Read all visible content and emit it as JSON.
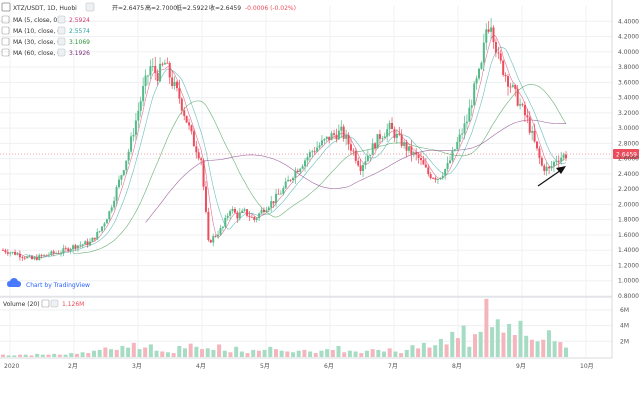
{
  "header": {
    "pair": "XTZ/USDT, 1D, Huobi",
    "open_label": "开=2.6475",
    "high_label": "高=2.7000",
    "low_label": "低=2.5922",
    "close_label": "收=2.6459",
    "change_label": "-0.0006 (-0.02%)"
  },
  "indicators": [
    {
      "label": "MA (5, close, 0)",
      "value": "2.5924",
      "color": "#d23a6e"
    },
    {
      "label": "MA (10, close, 0)",
      "value": "2.5574",
      "color": "#2aa39a"
    },
    {
      "label": "MA (30, close, 0)",
      "value": "3.1069",
      "color": "#2d8f3a"
    },
    {
      "label": "MA (60, close, 0)",
      "value": "3.1926",
      "color": "#7a2a7a"
    }
  ],
  "volume_panel": {
    "label": "Volume (20)",
    "value": "1.126M",
    "ticks": [
      "6M",
      "4M",
      "2M"
    ]
  },
  "watermark": "Chart by TradingView",
  "current_price_tag": "2.6459",
  "colors": {
    "up": "#53b987",
    "down": "#eb4d5c",
    "up_volume": "#a6dcc4",
    "down_volume": "#f5b5bd",
    "tag": "#eb4d5c"
  },
  "chart_data": {
    "type": "candlestick",
    "title": "XTZ/USDT, 1D, Huobi",
    "price_axis_ticks": [
      "4.4000",
      "4.2000",
      "4.0000",
      "3.8000",
      "3.6000",
      "3.4000",
      "3.2000",
      "3.0000",
      "2.8000",
      "2.6000",
      "2.4000",
      "2.2000",
      "2.0000",
      "1.8000",
      "1.6000",
      "1.4000",
      "1.2000",
      "1.0000",
      "0.8000"
    ],
    "x_axis_ticks": [
      "2020",
      "2月",
      "3月",
      "4月",
      "5月",
      "6月",
      "7月",
      "8月",
      "9月",
      "10月"
    ],
    "ylim": [
      0.8,
      4.6
    ],
    "volume_ylim": [
      0,
      7
    ],
    "current_price": 2.6459,
    "price_path": [
      [
        0,
        1.4
      ],
      [
        6,
        1.35
      ],
      [
        12,
        1.28
      ],
      [
        18,
        1.34
      ],
      [
        24,
        1.38
      ],
      [
        30,
        1.46
      ],
      [
        36,
        1.5
      ],
      [
        40,
        1.65
      ],
      [
        44,
        1.9
      ],
      [
        48,
        2.3
      ],
      [
        52,
        2.7
      ],
      [
        55,
        3.1
      ],
      [
        58,
        3.5
      ],
      [
        61,
        3.8
      ],
      [
        64,
        3.7
      ],
      [
        67,
        3.85
      ],
      [
        70,
        3.6
      ],
      [
        73,
        3.4
      ],
      [
        76,
        3.1
      ],
      [
        79,
        2.8
      ],
      [
        82,
        2.6
      ],
      [
        85,
        1.5
      ],
      [
        88,
        1.6
      ],
      [
        91,
        1.7
      ],
      [
        94,
        1.95
      ],
      [
        97,
        1.85
      ],
      [
        100,
        1.9
      ],
      [
        104,
        1.8
      ],
      [
        108,
        1.95
      ],
      [
        112,
        2.05
      ],
      [
        116,
        2.2
      ],
      [
        120,
        2.4
      ],
      [
        124,
        2.55
      ],
      [
        128,
        2.7
      ],
      [
        132,
        2.8
      ],
      [
        136,
        2.9
      ],
      [
        140,
        2.95
      ],
      [
        144,
        2.75
      ],
      [
        148,
        2.5
      ],
      [
        152,
        2.7
      ],
      [
        156,
        2.9
      ],
      [
        160,
        3.0
      ],
      [
        164,
        2.85
      ],
      [
        168,
        2.7
      ],
      [
        172,
        2.6
      ],
      [
        176,
        2.4
      ],
      [
        180,
        2.35
      ],
      [
        184,
        2.5
      ],
      [
        188,
        2.8
      ],
      [
        192,
        3.1
      ],
      [
        195,
        3.5
      ],
      [
        198,
        3.8
      ],
      [
        200,
        4.3
      ],
      [
        202,
        4.4
      ],
      [
        205,
        3.9
      ],
      [
        208,
        3.7
      ],
      [
        211,
        3.5
      ],
      [
        214,
        3.3
      ],
      [
        217,
        3.1
      ],
      [
        220,
        2.8
      ],
      [
        223,
        2.5
      ],
      [
        226,
        2.45
      ],
      [
        229,
        2.6
      ],
      [
        233,
        2.65
      ]
    ],
    "volumes": [
      0.3,
      0.2,
      0.2,
      0.3,
      0.3,
      0.2,
      0.4,
      0.3,
      0.3,
      0.4,
      0.3,
      0.3,
      0.5,
      0.4,
      0.6,
      0.5,
      0.8,
      0.9,
      1.2,
      1.0,
      0.9,
      1.4,
      1.2,
      1.8,
      1.0,
      1.2,
      1.6,
      0.8,
      0.7,
      0.6,
      0.5,
      1.4,
      1.1,
      1.7,
      1.3,
      1.0,
      1.1,
      0.9,
      1.6,
      0.8,
      0.6,
      1.3,
      0.7,
      0.5,
      0.9,
      0.8,
      0.9,
      1.3,
      1.0,
      0.8,
      0.7,
      0.6,
      0.8,
      0.9,
      0.7,
      0.5,
      0.8,
      1.0,
      0.9,
      1.4,
      0.6,
      0.8,
      0.7,
      0.5,
      0.8,
      1.0,
      0.9,
      0.7,
      1.1,
      0.7,
      0.5,
      0.9,
      1.5,
      1.1,
      1.8,
      1.2,
      1.5,
      2.3,
      1.6,
      3.2,
      2.4,
      4.0,
      1.3,
      2.9,
      3.2,
      7.4,
      3.8,
      4.8,
      3.1,
      4.2,
      2.8,
      4.6,
      2.7,
      2.2,
      2.0,
      2.2,
      3.4,
      2.0,
      1.9,
      1.2
    ]
  }
}
